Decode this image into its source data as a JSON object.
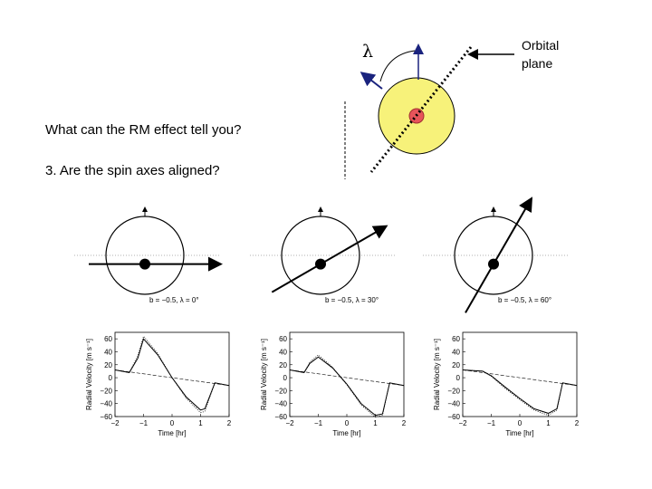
{
  "slide": {
    "question": "What can the RM effect tell you?",
    "point": "3. Are the spin axes aligned?"
  },
  "diagram": {
    "lambda_symbol": "λ",
    "orbital_label_line1": "Orbital",
    "orbital_label_line2": "plane",
    "star_color": "#f7f27a",
    "planet_color": "#e8545a"
  },
  "panels": [
    {
      "caption": "b = −0.5, λ = 0°",
      "lambda_deg": 0
    },
    {
      "caption": "b = −0.5, λ = 30°",
      "lambda_deg": 30
    },
    {
      "caption": "b = −0.5, λ = 60°",
      "lambda_deg": 60
    }
  ],
  "chart_data": [
    {
      "type": "line",
      "xlabel": "Time [hr]",
      "ylabel": "Radial Velocity [m s⁻¹]",
      "xlim": [
        -2,
        2
      ],
      "ylim": [
        -60,
        70
      ],
      "xticks": [
        -2,
        -1,
        0,
        1,
        2
      ],
      "yticks": [
        60,
        40,
        20,
        0,
        -20,
        -40,
        -60
      ],
      "series": [
        {
          "style": "solid",
          "x": [
            -2,
            -1.5,
            -1.2,
            -1.0,
            -0.5,
            0,
            0.5,
            1.0,
            1.15,
            1.5,
            2
          ],
          "y": [
            12,
            8,
            30,
            60,
            35,
            0,
            -30,
            -50,
            -48,
            -8,
            -12
          ]
        },
        {
          "style": "dotted",
          "x": [
            -2,
            -1.5,
            -1.2,
            -1.0,
            -0.5,
            0,
            0.5,
            1.0,
            1.15,
            1.5,
            2
          ],
          "y": [
            12,
            8,
            34,
            64,
            37,
            0,
            -32,
            -54,
            -52,
            -8,
            -12
          ]
        },
        {
          "style": "dashed",
          "x": [
            -2,
            2
          ],
          "y": [
            12,
            -12
          ]
        }
      ]
    },
    {
      "type": "line",
      "xlabel": "Time [hr]",
      "ylabel": "Radial Velocity [m s⁻¹]",
      "xlim": [
        -2,
        2
      ],
      "ylim": [
        -60,
        70
      ],
      "xticks": [
        -2,
        -1,
        0,
        1,
        2
      ],
      "yticks": [
        60,
        40,
        20,
        0,
        -20,
        -40,
        -60
      ],
      "series": [
        {
          "style": "solid",
          "x": [
            -2,
            -1.5,
            -1.3,
            -1.0,
            -0.5,
            0,
            0.5,
            1.0,
            1.25,
            1.5,
            2
          ],
          "y": [
            12,
            8,
            22,
            32,
            15,
            -10,
            -40,
            -58,
            -56,
            -8,
            -12
          ]
        },
        {
          "style": "dotted",
          "x": [
            -2,
            -1.5,
            -1.3,
            -1.0,
            -0.5,
            0,
            0.5,
            1.0,
            1.25,
            1.5,
            2
          ],
          "y": [
            12,
            8,
            24,
            35,
            16,
            -11,
            -42,
            -61,
            -58,
            -8,
            -12
          ]
        },
        {
          "style": "dashed",
          "x": [
            -2,
            2
          ],
          "y": [
            12,
            -12
          ]
        }
      ]
    },
    {
      "type": "line",
      "xlabel": "Time [hr]",
      "ylabel": "Radial Velocity [m s⁻¹]",
      "xlim": [
        -2,
        2
      ],
      "ylim": [
        -60,
        70
      ],
      "xticks": [
        -2,
        -1,
        0,
        1,
        2
      ],
      "yticks": [
        60,
        40,
        20,
        0,
        -20,
        -40,
        -60
      ],
      "series": [
        {
          "style": "solid",
          "x": [
            -2,
            -1.3,
            -1.0,
            -0.5,
            0,
            0.5,
            1.0,
            1.3,
            1.5,
            2
          ],
          "y": [
            12,
            10,
            3,
            -15,
            -32,
            -48,
            -55,
            -48,
            -8,
            -12
          ]
        },
        {
          "style": "dotted",
          "x": [
            -2,
            -1.3,
            -1.0,
            -0.5,
            0,
            0.5,
            1.0,
            1.3,
            1.5,
            2
          ],
          "y": [
            12,
            10,
            2,
            -17,
            -34,
            -50,
            -58,
            -50,
            -8,
            -12
          ]
        },
        {
          "style": "dashed",
          "x": [
            -2,
            2
          ],
          "y": [
            12,
            -12
          ]
        }
      ]
    }
  ]
}
